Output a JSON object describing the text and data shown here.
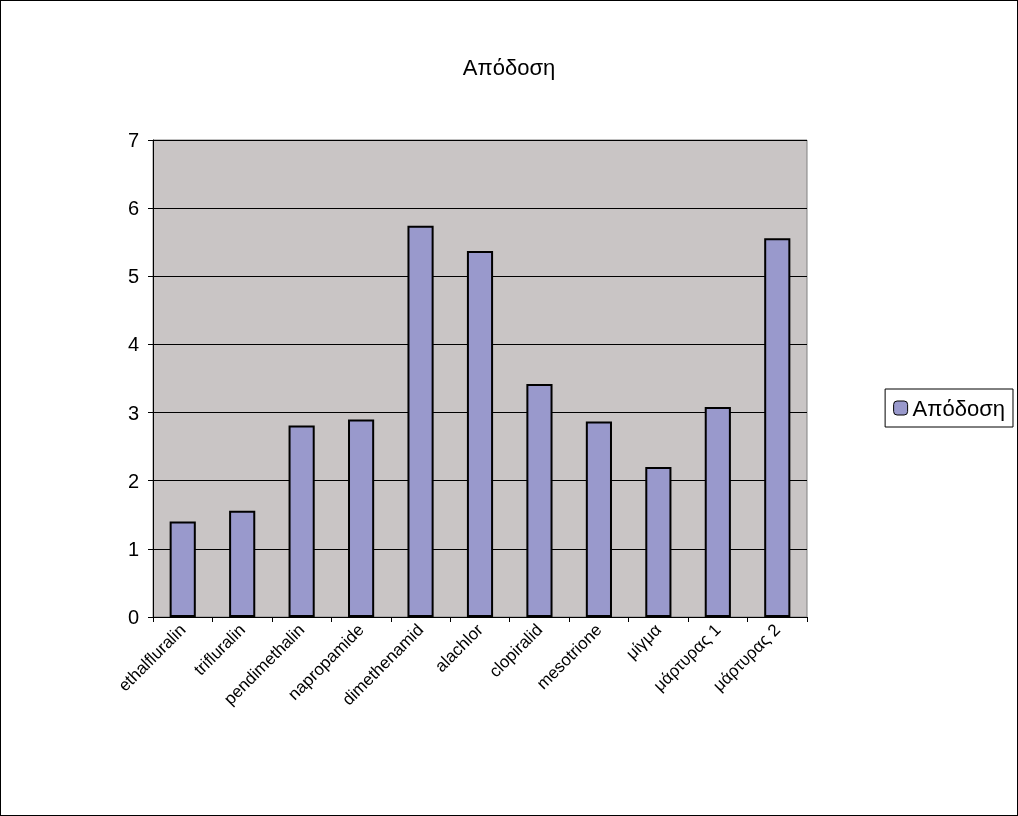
{
  "chart_data": {
    "type": "bar",
    "title": "Απόδοση",
    "categories": [
      "ethalfluralin",
      "trifluralin",
      "pendimethalin",
      "napropamide",
      "dimethenamid",
      "alachlor",
      "clopiralid",
      "mesotrione",
      "μίγμα",
      "μάρτυρας 1",
      "μάρτυρας 2"
    ],
    "series": [
      {
        "name": "Απόδοση",
        "color": "#9999cc",
        "values": [
          1.4,
          1.56,
          2.81,
          2.9,
          5.74,
          5.37,
          3.42,
          2.87,
          2.2,
          3.08,
          5.56
        ]
      }
    ],
    "ylim": [
      0,
      7
    ],
    "yticks": [
      0,
      1,
      2,
      3,
      4,
      5,
      6,
      7
    ],
    "grid": "y",
    "legend": "right"
  }
}
